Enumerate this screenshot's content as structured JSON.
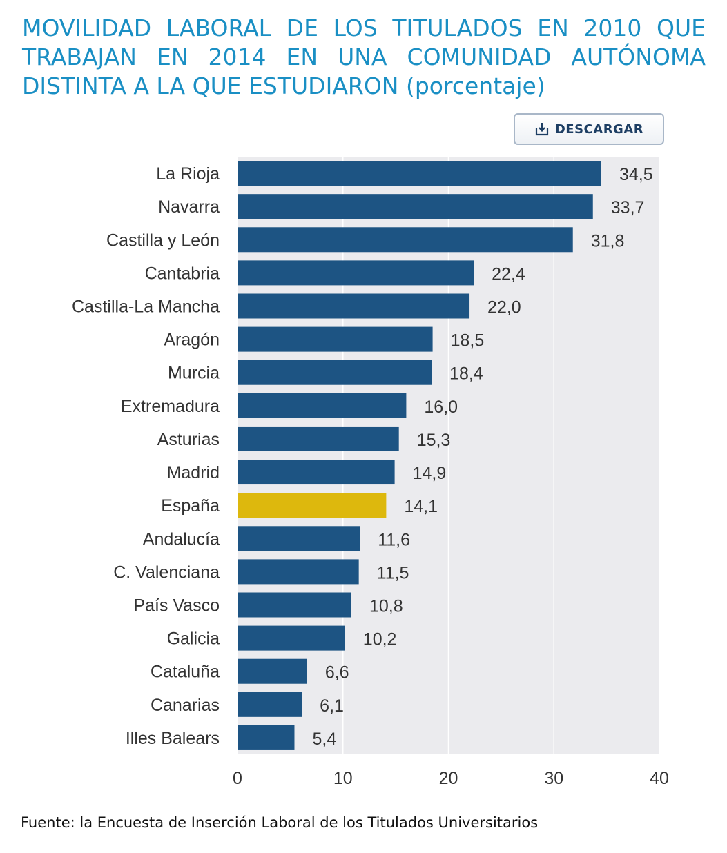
{
  "title": "MOVILIDAD LABORAL DE LOS TITULADOS EN 2010 QUE TRABAJAN EN 2014 EN UNA COMUNIDAD AUTÓNOMA DISTINTA A LA QUE ESTUDIARON (porcentaje)",
  "download_button": {
    "label": "DESCARGAR",
    "icon": "download-icon"
  },
  "source": "Fuente: la Encuesta de Inserción Laboral de los Titulados Universitarios",
  "colors": {
    "bar": "#1d5483",
    "highlight": "#ddb80d",
    "plot_bg": "#ebebee",
    "grid": "#ffffff",
    "title": "#1a8fc4"
  },
  "chart_data": {
    "type": "bar",
    "orientation": "horizontal",
    "categories": [
      "La Rioja",
      "Navarra",
      "Castilla y León",
      "Cantabria",
      "Castilla-La Mancha",
      "Aragón",
      "Murcia",
      "Extremadura",
      "Asturias",
      "Madrid",
      "España",
      "Andalucía",
      "C. Valenciana",
      "País Vasco",
      "Galicia",
      "Cataluña",
      "Canarias",
      "Illes Balears"
    ],
    "values": [
      34.5,
      33.7,
      31.8,
      22.4,
      22.0,
      18.5,
      18.4,
      16.0,
      15.3,
      14.9,
      14.1,
      11.6,
      11.5,
      10.8,
      10.2,
      6.6,
      6.1,
      5.4
    ],
    "value_labels": [
      "34,5",
      "33,7",
      "31,8",
      "22,4",
      "22,0",
      "18,5",
      "18,4",
      "16,0",
      "15,3",
      "14,9",
      "14,1",
      "11,6",
      "11,5",
      "10,8",
      "10,2",
      "6,6",
      "6,1",
      "5,4"
    ],
    "highlight_category": "España",
    "xlim": [
      0,
      40
    ],
    "xticks": [
      0,
      10,
      20,
      30,
      40
    ],
    "xtick_labels": [
      "0",
      "10",
      "20",
      "30",
      "40"
    ],
    "grid": true,
    "legend": false
  }
}
